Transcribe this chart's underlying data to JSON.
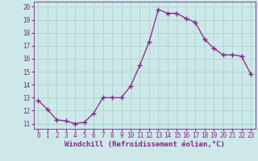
{
  "x": [
    0,
    1,
    2,
    3,
    4,
    5,
    6,
    7,
    8,
    9,
    10,
    11,
    12,
    13,
    14,
    15,
    16,
    17,
    18,
    19,
    20,
    21,
    22,
    23
  ],
  "y": [
    12.8,
    12.1,
    11.3,
    11.2,
    11.0,
    11.1,
    11.8,
    13.0,
    13.0,
    13.0,
    13.9,
    15.5,
    17.3,
    19.8,
    19.5,
    19.5,
    19.1,
    18.8,
    17.5,
    16.8,
    16.3,
    16.3,
    16.2,
    14.8
  ],
  "line_color": "#882288",
  "marker": "+",
  "markersize": 4,
  "linewidth": 0.9,
  "bgcolor": "#cce8e8",
  "grid_color": "#aacece",
  "xlabel": "Windchill (Refroidissement éolien,°C)",
  "xlabel_fontsize": 6.5,
  "yticks": [
    11,
    12,
    13,
    14,
    15,
    16,
    17,
    18,
    19,
    20
  ],
  "xticks": [
    0,
    1,
    2,
    3,
    4,
    5,
    6,
    7,
    8,
    9,
    10,
    11,
    12,
    13,
    14,
    15,
    16,
    17,
    18,
    19,
    20,
    21,
    22,
    23
  ],
  "ylim": [
    10.6,
    20.4
  ],
  "xlim": [
    -0.5,
    23.5
  ],
  "tick_color": "#882288",
  "tick_fontsize": 5.5,
  "label_color": "#882288"
}
